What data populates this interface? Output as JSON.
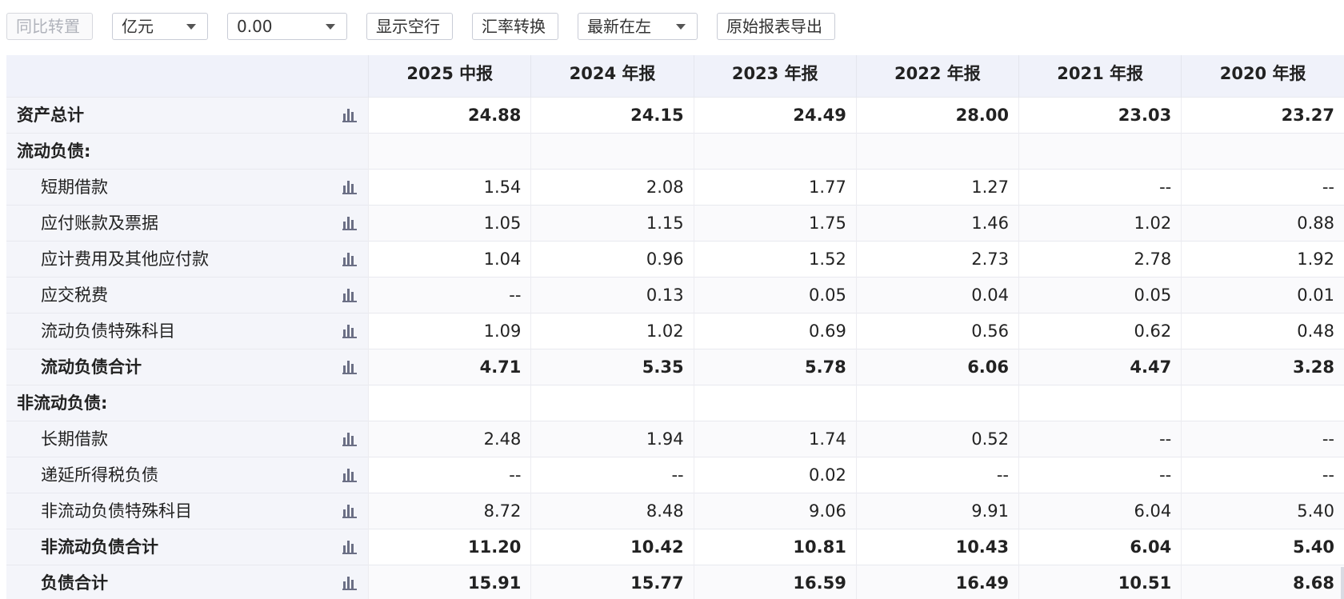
{
  "toolbar": {
    "yoy_label": "同比转置",
    "unit_value": "亿元",
    "precision_value": "0.00",
    "show_empty_label": "显示空行",
    "fx_label": "汇率转换",
    "order_value": "最新在左",
    "export_label": "原始报表导出"
  },
  "columns": [
    "2025 中报",
    "2024 年报",
    "2023 年报",
    "2022 年报",
    "2021 年报",
    "2020 年报"
  ],
  "rows": [
    {
      "label": "资产总计",
      "values": [
        "24.88",
        "24.15",
        "24.49",
        "28.00",
        "23.03",
        "23.27"
      ]
    },
    {
      "label": "流动负债:",
      "values": [
        "",
        "",
        "",
        "",
        "",
        ""
      ]
    },
    {
      "label": "短期借款",
      "values": [
        "1.54",
        "2.08",
        "1.77",
        "1.27",
        "--",
        "--"
      ]
    },
    {
      "label": "应付账款及票据",
      "values": [
        "1.05",
        "1.15",
        "1.75",
        "1.46",
        "1.02",
        "0.88"
      ]
    },
    {
      "label": "应计费用及其他应付款",
      "values": [
        "1.04",
        "0.96",
        "1.52",
        "2.73",
        "2.78",
        "1.92"
      ]
    },
    {
      "label": "应交税费",
      "values": [
        "--",
        "0.13",
        "0.05",
        "0.04",
        "0.05",
        "0.01"
      ]
    },
    {
      "label": "流动负债特殊科目",
      "values": [
        "1.09",
        "1.02",
        "0.69",
        "0.56",
        "0.62",
        "0.48"
      ]
    },
    {
      "label": "流动负债合计",
      "values": [
        "4.71",
        "5.35",
        "5.78",
        "6.06",
        "4.47",
        "3.28"
      ]
    },
    {
      "label": "非流动负债:",
      "values": [
        "",
        "",
        "",
        "",
        "",
        ""
      ]
    },
    {
      "label": "长期借款",
      "values": [
        "2.48",
        "1.94",
        "1.74",
        "0.52",
        "--",
        "--"
      ]
    },
    {
      "label": "递延所得税负债",
      "values": [
        "--",
        "--",
        "0.02",
        "--",
        "--",
        "--"
      ]
    },
    {
      "label": "非流动负债特殊科目",
      "values": [
        "8.72",
        "8.48",
        "9.06",
        "9.91",
        "6.04",
        "5.40"
      ]
    },
    {
      "label": "非流动负债合计",
      "values": [
        "11.20",
        "10.42",
        "10.81",
        "10.43",
        "6.04",
        "5.40"
      ]
    },
    {
      "label": "负债合计",
      "values": [
        "15.91",
        "15.77",
        "16.59",
        "16.49",
        "10.51",
        "8.68"
      ]
    }
  ],
  "icons": {
    "row_chart": "bar-chart-icon",
    "dropdown": "chevron-down-icon"
  }
}
